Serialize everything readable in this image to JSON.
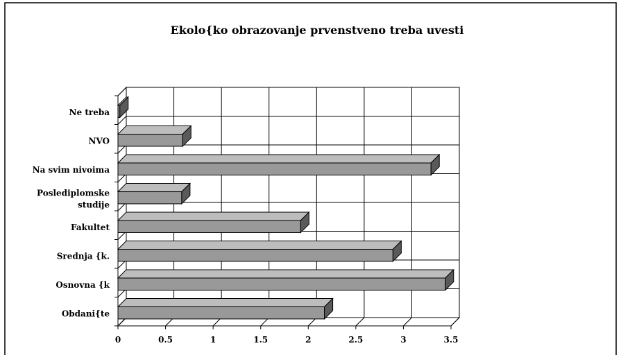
{
  "chart_data": {
    "type": "bar",
    "orientation": "horizontal",
    "style": "3d",
    "title": "Ekolo{ko obrazovanje prvenstveno treba uvesti",
    "xlabel": "",
    "ylabel": "",
    "categories": [
      [
        "Ne treba"
      ],
      [
        "NVO"
      ],
      [
        "Na svim nivoima"
      ],
      [
        "Poslediplomske",
        "studije"
      ],
      [
        "Fakultet"
      ],
      [
        "Srednja {k."
      ],
      [
        "Osnovna {k"
      ],
      [
        "Obdani{te"
      ]
    ],
    "values": [
      0.02,
      0.68,
      3.29,
      0.67,
      1.92,
      2.89,
      3.44,
      2.17
    ],
    "xlim": [
      0,
      3.5
    ],
    "x_ticks": [
      0,
      0.5,
      1,
      1.5,
      2,
      2.5,
      3,
      3.5
    ],
    "x_tick_labels": [
      "0",
      "0.5",
      "1",
      "1.5",
      "2",
      "2.5",
      "3",
      "3.5"
    ],
    "grid": true,
    "legend": "none",
    "colors": {
      "bar_front": "#999999",
      "bar_top": "#bdbdbd",
      "bar_side": "#5a5a5a",
      "grid": "#000000"
    }
  }
}
